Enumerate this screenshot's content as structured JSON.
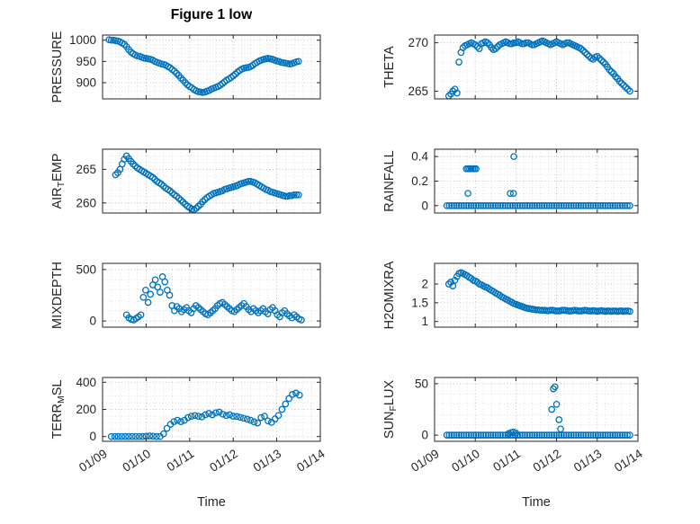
{
  "title": "Figure 1 low",
  "marker_color": "#0072BD",
  "grid_color_major": "#b5b5b5",
  "grid_color_minor": "#d9d9d9",
  "axis_color": "#262626",
  "x_axis": {
    "label": "Time",
    "lim": [
      0,
      5
    ],
    "tick_values": [
      0,
      1,
      2,
      3,
      4,
      5
    ],
    "tick_labels": [
      "01/09",
      "01/10",
      "01/11",
      "01/12",
      "01/13",
      "01/14"
    ]
  },
  "chart_data": [
    {
      "type": "scatter",
      "name": "pressure",
      "ylabel": "PRESSURE",
      "ylabel_parts": [
        {
          "text": "PRESSURE",
          "sub": false
        }
      ],
      "yticks": [
        900,
        950,
        1000
      ],
      "ylim": [
        862,
        1012
      ],
      "yminor": 10,
      "x_start": 0.15,
      "x_step": 0.05,
      "y": [
        1001,
        1000,
        1000,
        999,
        998,
        996,
        993,
        990,
        985,
        978,
        972,
        968,
        965,
        963,
        962,
        960,
        958,
        957,
        956,
        955,
        953,
        950,
        948,
        946,
        944,
        943,
        941,
        938,
        935,
        931,
        927,
        922,
        917,
        911,
        906,
        900,
        895,
        891,
        888,
        884,
        881,
        879,
        878,
        877,
        878,
        880,
        882,
        885,
        887,
        889,
        891,
        894,
        898,
        902,
        906,
        909,
        912,
        916,
        920,
        925,
        929,
        932,
        934,
        935,
        936,
        938,
        941,
        945,
        948,
        951,
        953,
        955,
        956,
        957,
        956,
        955,
        953,
        951,
        950,
        948,
        947,
        946,
        945,
        944,
        945,
        947,
        949,
        950
      ]
    },
    {
      "type": "scatter",
      "name": "theta",
      "ylabel": "THETA",
      "ylabel_parts": [
        {
          "text": "THETA",
          "sub": false
        }
      ],
      "yticks": [
        265,
        270
      ],
      "ylim": [
        264.2,
        270.8
      ],
      "yminor": 1,
      "x_start": 0.35,
      "x_step": 0.05,
      "y": [
        264.5,
        264.7,
        265,
        265.2,
        264.8,
        268,
        269,
        269.5,
        269.7,
        269.8,
        269.9,
        270,
        269.9,
        269.8,
        269.6,
        269.4,
        269.9,
        270,
        270.1,
        270,
        269.8,
        269.5,
        269.3,
        269.4,
        269.6,
        269.8,
        269.9,
        270,
        270.1,
        270,
        269.9,
        269.9,
        270,
        270,
        270.1,
        270,
        269.9,
        269.9,
        270,
        270,
        269.9,
        269.8,
        269.8,
        269.9,
        270,
        270.1,
        270.2,
        270.1,
        270,
        269.9,
        269.8,
        269.9,
        270,
        270.1,
        270,
        269.9,
        269.8,
        269.9,
        270,
        270,
        269.9,
        269.8,
        269.7,
        269.6,
        269.5,
        269.4,
        269.2,
        269,
        268.8,
        268.6,
        268.4,
        268.3,
        268.5,
        268.6,
        268.4,
        268.2,
        268,
        267.8,
        267.5,
        267.2,
        267,
        266.8,
        266.5,
        266.3,
        266,
        265.8,
        265.6,
        265.4,
        265.2,
        265
      ]
    },
    {
      "type": "scatter",
      "name": "airtemp",
      "ylabel": "AIR_TEMP",
      "ylabel_parts": [
        {
          "text": "AIR",
          "sub": false
        },
        {
          "text": "T",
          "sub": true
        },
        {
          "text": "EMP",
          "sub": false
        }
      ],
      "yticks": [
        260,
        265
      ],
      "ylim": [
        258.5,
        268
      ],
      "yminor": 1,
      "x_start": 0.3,
      "x_step": 0.05,
      "y": [
        264.2,
        264.5,
        265,
        265.8,
        266.5,
        267,
        266.6,
        266.2,
        265.8,
        265.5,
        265.2,
        265,
        264.8,
        264.6,
        264.4,
        264.2,
        264,
        263.8,
        263.5,
        263.2,
        263,
        262.8,
        262.5,
        262.2,
        262,
        261.8,
        261.5,
        261.2,
        261,
        260.7,
        260.4,
        260.1,
        259.8,
        259.5,
        259.3,
        259.1,
        259,
        259.2,
        259.5,
        259.8,
        260.2,
        260.5,
        260.8,
        261,
        261.2,
        261.4,
        261.5,
        261.6,
        261.7,
        261.8,
        262,
        262.1,
        262.2,
        262.3,
        262.4,
        262.5,
        262.6,
        262.8,
        262.9,
        263,
        263.1,
        263.2,
        263.2,
        263.1,
        263,
        262.8,
        262.6,
        262.4,
        262.2,
        262,
        261.9,
        261.7,
        261.6,
        261.5,
        261.4,
        261.3,
        261.2,
        261.1,
        261,
        261,
        261.1,
        261.1,
        261.2,
        261.2,
        261.2
      ]
    },
    {
      "type": "scatter",
      "name": "rainfall",
      "ylabel": "RAINFALL",
      "ylabel_parts": [
        {
          "text": "RAINFALL",
          "sub": false
        }
      ],
      "yticks": [
        0,
        0.2,
        0.4
      ],
      "ylim": [
        -0.06,
        0.46
      ],
      "yminor": 0.05,
      "x": [
        0.3,
        0.36,
        0.42,
        0.48,
        0.54,
        0.6,
        0.66,
        0.72,
        0.78,
        0.84,
        0.9,
        0.96,
        1.02,
        1.08,
        1.14,
        1.2,
        1.26,
        1.32,
        1.38,
        1.44,
        1.5,
        1.56,
        1.62,
        1.68,
        1.74,
        1.8,
        1.86,
        1.92,
        1.98,
        2.04,
        2.1,
        2.16,
        2.22,
        2.28,
        2.34,
        2.4,
        2.46,
        2.52,
        2.58,
        2.64,
        2.7,
        2.76,
        2.82,
        2.88,
        2.94,
        3,
        3.06,
        3.12,
        3.18,
        3.24,
        3.3,
        3.36,
        3.42,
        3.48,
        3.54,
        3.6,
        3.66,
        3.72,
        3.78,
        3.84,
        3.9,
        3.96,
        4.02,
        4.08,
        4.14,
        4.2,
        4.26,
        4.32,
        4.38,
        4.44,
        4.5,
        4.56,
        4.62,
        4.68,
        4.74,
        4.8,
        0.78,
        0.82,
        0.86,
        0.9,
        0.94,
        0.98,
        1.02,
        0.82,
        1.86,
        1.94,
        1.95
      ],
      "y": [
        0,
        0,
        0,
        0,
        0,
        0,
        0,
        0,
        0,
        0,
        0,
        0,
        0,
        0,
        0,
        0,
        0,
        0,
        0,
        0,
        0,
        0,
        0,
        0,
        0,
        0,
        0,
        0,
        0,
        0,
        0,
        0,
        0,
        0,
        0,
        0,
        0,
        0,
        0,
        0,
        0,
        0,
        0,
        0,
        0,
        0,
        0,
        0,
        0,
        0,
        0,
        0,
        0,
        0,
        0,
        0,
        0,
        0,
        0,
        0,
        0,
        0,
        0,
        0,
        0,
        0,
        0,
        0,
        0,
        0,
        0,
        0,
        0,
        0,
        0,
        0,
        0.3,
        0.3,
        0.3,
        0.3,
        0.3,
        0.3,
        0.3,
        0.1,
        0.1,
        0.1,
        0.4
      ]
    },
    {
      "type": "scatter",
      "name": "mixdepth",
      "ylabel": "MIXDEPTH",
      "ylabel_parts": [
        {
          "text": "MIXDEPTH",
          "sub": false
        }
      ],
      "yticks": [
        0,
        500
      ],
      "ylim": [
        -60,
        560
      ],
      "yminor": 100,
      "x_start": 0.55,
      "x_step": 0.055,
      "y": [
        60,
        30,
        15,
        10,
        25,
        40,
        60,
        230,
        300,
        180,
        260,
        350,
        400,
        330,
        280,
        430,
        380,
        300,
        250,
        150,
        100,
        140,
        120,
        90,
        110,
        130,
        100,
        80,
        120,
        150,
        130,
        110,
        90,
        70,
        60,
        80,
        100,
        120,
        150,
        170,
        180,
        160,
        140,
        120,
        100,
        90,
        110,
        130,
        150,
        170,
        140,
        110,
        90,
        120,
        100,
        80,
        100,
        120,
        90,
        70,
        110,
        130,
        100,
        60,
        40,
        80,
        100,
        70,
        50,
        30,
        60,
        40,
        20,
        10
      ]
    },
    {
      "type": "scatter",
      "name": "h2omixra",
      "ylabel": "H2OMIXRA",
      "ylabel_parts": [
        {
          "text": "H2OMIXRA",
          "sub": false
        }
      ],
      "yticks": [
        1,
        1.5,
        2
      ],
      "ylim": [
        0.85,
        2.55
      ],
      "yminor": 0.1,
      "x_start": 0.35,
      "x_step": 0.05,
      "y": [
        2,
        2.05,
        1.95,
        2.1,
        2.2,
        2.28,
        2.3,
        2.28,
        2.25,
        2.22,
        2.18,
        2.15,
        2.1,
        2.08,
        2.05,
        2,
        1.98,
        1.95,
        1.92,
        1.9,
        1.86,
        1.83,
        1.8,
        1.76,
        1.73,
        1.7,
        1.66,
        1.63,
        1.6,
        1.57,
        1.54,
        1.51,
        1.48,
        1.46,
        1.44,
        1.42,
        1.4,
        1.38,
        1.36,
        1.35,
        1.34,
        1.33,
        1.32,
        1.31,
        1.31,
        1.3,
        1.3,
        1.3,
        1.29,
        1.29,
        1.3,
        1.3,
        1.29,
        1.28,
        1.28,
        1.29,
        1.3,
        1.3,
        1.29,
        1.28,
        1.28,
        1.29,
        1.3,
        1.29,
        1.28,
        1.28,
        1.29,
        1.3,
        1.29,
        1.28,
        1.28,
        1.29,
        1.28,
        1.27,
        1.28,
        1.29,
        1.28,
        1.27,
        1.28,
        1.28,
        1.27,
        1.28,
        1.28,
        1.27,
        1.28,
        1.28,
        1.27,
        1.28,
        1.28,
        1.27
      ]
    },
    {
      "type": "scatter",
      "name": "terr_msl",
      "ylabel": "TERR_MSL",
      "ylabel_parts": [
        {
          "text": "TERR",
          "sub": false
        },
        {
          "text": "M",
          "sub": true
        },
        {
          "text": "SL",
          "sub": false
        }
      ],
      "yticks": [
        0,
        200,
        400
      ],
      "ylim": [
        -35,
        435
      ],
      "yminor": 50,
      "x_start": 0.2,
      "x_step": 0.08,
      "y": [
        0,
        0,
        0,
        0,
        0,
        0,
        0,
        0,
        0,
        0,
        2,
        5,
        3,
        0,
        0,
        20,
        60,
        90,
        110,
        120,
        110,
        120,
        140,
        150,
        155,
        150,
        145,
        160,
        170,
        160,
        175,
        180,
        165,
        155,
        160,
        150,
        148,
        142,
        135,
        128,
        120,
        108,
        100,
        140,
        150,
        115,
        105,
        130,
        155,
        200,
        240,
        280,
        310,
        320,
        305
      ]
    },
    {
      "type": "scatter",
      "name": "sun_flux",
      "ylabel": "SUN_FLUX",
      "ylabel_parts": [
        {
          "text": "SUN",
          "sub": false
        },
        {
          "text": "F",
          "sub": true
        },
        {
          "text": "LUX",
          "sub": false
        }
      ],
      "yticks": [
        0,
        50
      ],
      "ylim": [
        -6,
        56
      ],
      "yminor": 10,
      "x": [
        0.3,
        0.36,
        0.42,
        0.48,
        0.54,
        0.6,
        0.66,
        0.72,
        0.78,
        0.84,
        0.9,
        0.96,
        1.02,
        1.08,
        1.14,
        1.2,
        1.26,
        1.32,
        1.38,
        1.44,
        1.5,
        1.56,
        1.62,
        1.68,
        1.74,
        1.8,
        1.86,
        1.92,
        1.98,
        2.04,
        2.1,
        2.16,
        2.22,
        2.28,
        2.34,
        2.4,
        2.46,
        2.52,
        2.58,
        2.64,
        2.7,
        2.76,
        2.82,
        2.88,
        2.94,
        3,
        3.06,
        3.12,
        3.18,
        3.24,
        3.3,
        3.36,
        3.42,
        3.48,
        3.54,
        3.6,
        3.66,
        3.72,
        3.78,
        3.84,
        3.9,
        3.96,
        4.02,
        4.08,
        4.14,
        4.2,
        4.26,
        4.32,
        4.38,
        4.44,
        4.5,
        4.56,
        4.62,
        4.68,
        4.74,
        4.8,
        1.82,
        1.88,
        1.94,
        2,
        2.88,
        2.92,
        2.96,
        3,
        3.06,
        3.1
      ],
      "y": [
        0,
        0,
        0,
        0,
        0,
        0,
        0,
        0,
        0,
        0,
        0,
        0,
        0,
        0,
        0,
        0,
        0,
        0,
        0,
        0,
        0,
        0,
        0,
        0,
        0,
        0,
        0,
        0,
        0,
        0,
        0,
        0,
        0,
        0,
        0,
        0,
        0,
        0,
        0,
        0,
        0,
        0,
        0,
        0,
        0,
        0,
        0,
        0,
        0,
        0,
        0,
        0,
        0,
        0,
        0,
        0,
        0,
        0,
        0,
        0,
        0,
        0,
        0,
        0,
        0,
        0,
        0,
        0,
        0,
        0,
        0,
        0,
        0,
        0,
        0,
        0,
        1.5,
        2.5,
        3,
        2,
        25,
        45,
        47,
        30,
        15,
        6
      ]
    }
  ]
}
